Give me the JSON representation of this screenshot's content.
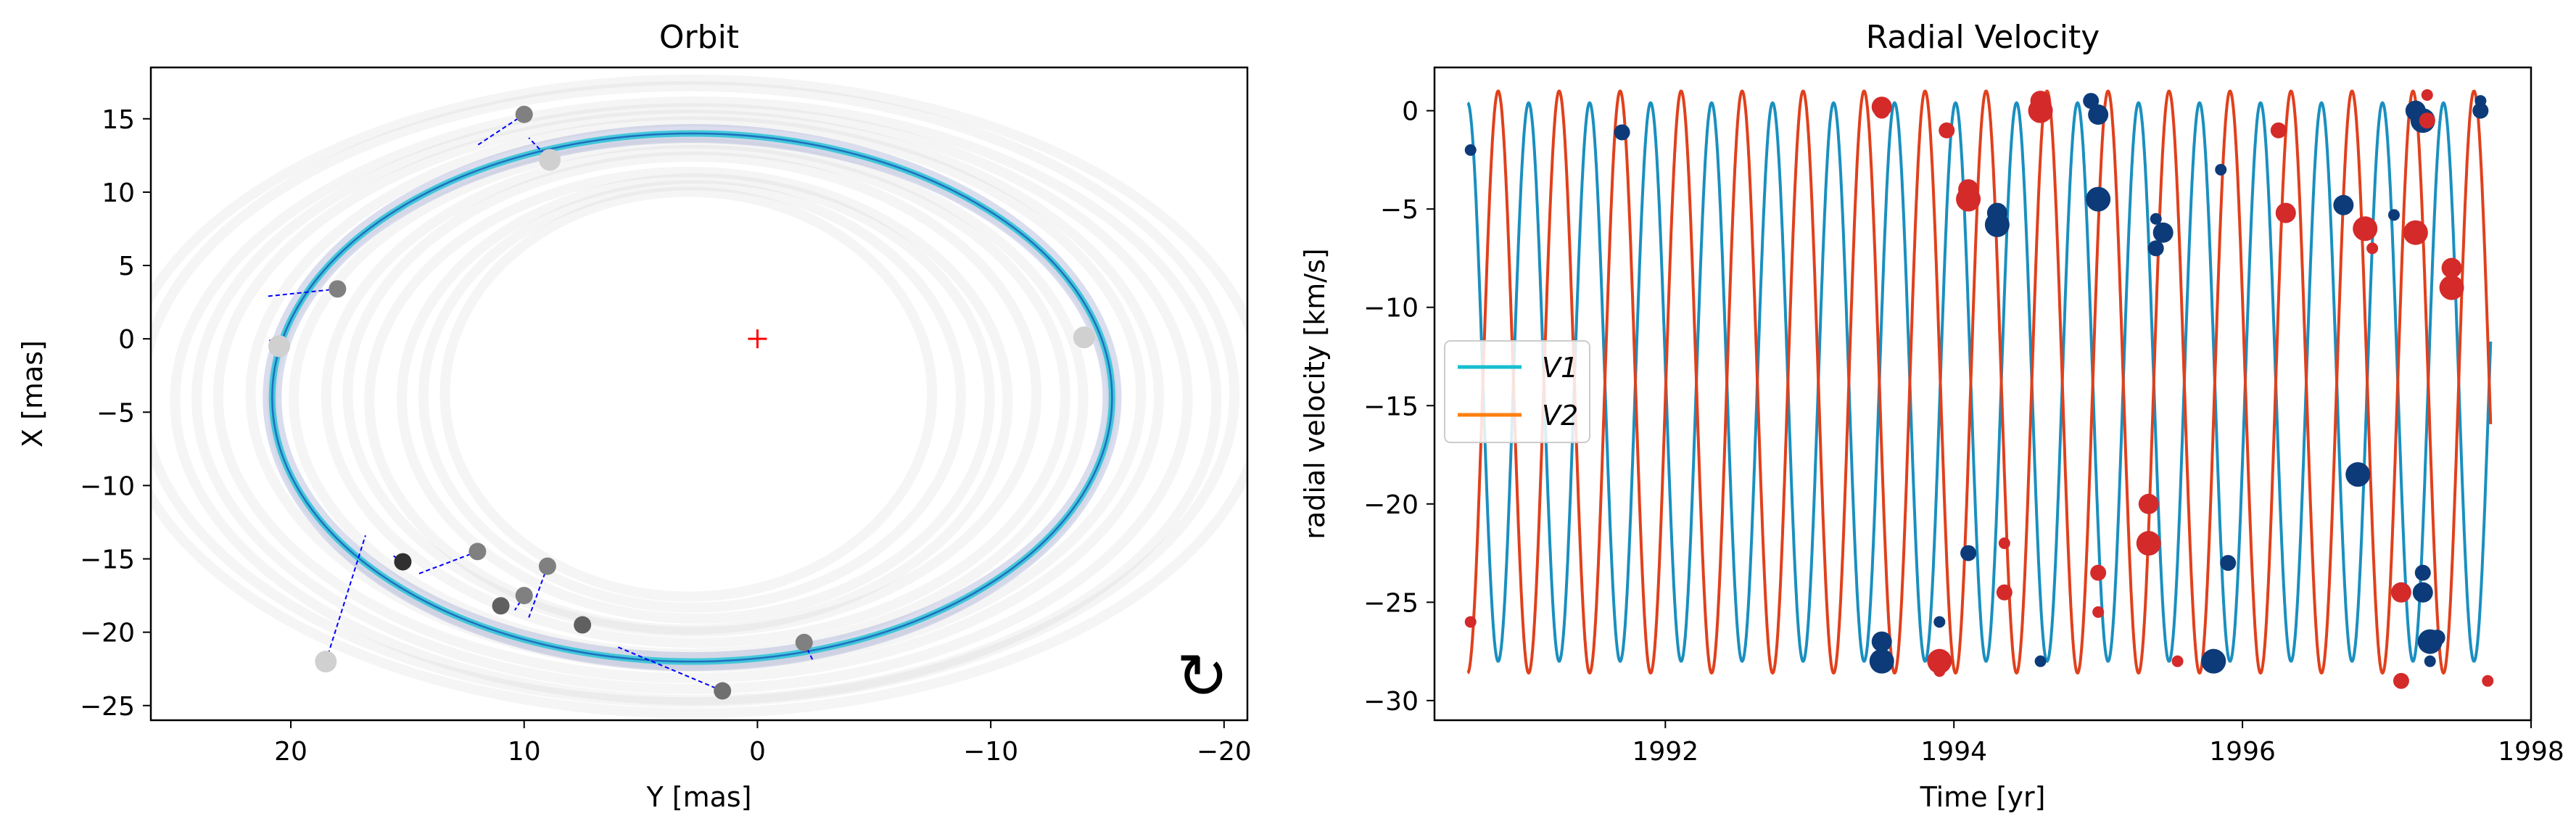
{
  "figure": {
    "panels": [
      {
        "title": "Orbit",
        "xlabel": "Y [mas]",
        "ylabel": "X [mas]",
        "rotation_symbol": "↻",
        "colors": {
          "orbit_band": "#29c4d6",
          "orbit_line": "#1f6fc0",
          "posterior_haze": "#c8c8c8",
          "origin_marker": "#ff0000",
          "residual_line": "#0000ff"
        }
      },
      {
        "title": "Radial Velocity",
        "xlabel": "Time [yr]",
        "ylabel": "radial velocity [km/s]",
        "legend": [
          "V1",
          "V2"
        ],
        "colors": {
          "v1_model": "#1a8fbf",
          "v2_model": "#e0401c",
          "v1_obs": "#0d3b7a",
          "v2_obs": "#d42a2a",
          "legend_v1": "#17becf",
          "legend_v2": "#ff7f0e"
        }
      }
    ]
  },
  "chart_data": [
    {
      "type": "scatter",
      "title": "Orbit",
      "xlabel": "Y [mas]",
      "ylabel": "X [mas]",
      "xlim": [
        26,
        -21
      ],
      "ylim": [
        -26,
        18.5
      ],
      "x_ticks": [
        20,
        10,
        0,
        -10,
        -20
      ],
      "x_tick_labels": [
        "20",
        "10",
        "0",
        "−10",
        "−20"
      ],
      "y_ticks": [
        15,
        10,
        5,
        0,
        -5,
        -10,
        -15,
        -20,
        -25
      ],
      "y_tick_labels": [
        "15",
        "10",
        "5",
        "0",
        "−5",
        "−10",
        "−15",
        "−20",
        "−25"
      ],
      "origin": {
        "x": 0,
        "y": 0,
        "marker": "+"
      },
      "orbit_ellipse": {
        "center": [
          2.8,
          -4.0
        ],
        "semi_axis_y": 18.0,
        "semi_axis_x": 18.0,
        "rotation_deg": 0
      },
      "observations": [
        {
          "x": 10.0,
          "y": 15.3,
          "model_x": 12.0,
          "model_y": 13.2,
          "shade": "#808080"
        },
        {
          "x": 8.9,
          "y": 12.2,
          "model_x": 9.8,
          "model_y": 13.7,
          "shade": "#d0d0d0"
        },
        {
          "x": 18.0,
          "y": 3.4,
          "model_x": 21.0,
          "model_y": 2.9,
          "shade": "#808080"
        },
        {
          "x": 20.5,
          "y": -0.5,
          "model_x": 21.0,
          "model_y": 0.0,
          "shade": "#d0d0d0"
        },
        {
          "x": -14.0,
          "y": 0.1,
          "model_x": -14.2,
          "model_y": 0.2,
          "shade": "#d0d0d0"
        },
        {
          "x": 12.0,
          "y": -14.5,
          "model_x": 14.5,
          "model_y": -16.0,
          "shade": "#808080"
        },
        {
          "x": 15.2,
          "y": -15.2,
          "model_x": 15.6,
          "model_y": -14.8,
          "shade": "#303030"
        },
        {
          "x": 10.0,
          "y": -17.5,
          "model_x": 10.4,
          "model_y": -18.5,
          "shade": "#808080"
        },
        {
          "x": 9.0,
          "y": -15.5,
          "model_x": 9.8,
          "model_y": -19.0,
          "shade": "#808080"
        },
        {
          "x": 11.0,
          "y": -18.2,
          "model_x": 11.2,
          "model_y": -18.0,
          "shade": "#606060"
        },
        {
          "x": 7.5,
          "y": -19.5,
          "model_x": 7.6,
          "model_y": -19.6,
          "shade": "#606060"
        },
        {
          "x": 1.5,
          "y": -24.0,
          "model_x": 6.0,
          "model_y": -21.0,
          "shade": "#707070"
        },
        {
          "x": -2.0,
          "y": -20.7,
          "model_x": -2.4,
          "model_y": -22.0,
          "shade": "#808080"
        },
        {
          "x": 18.5,
          "y": -22.0,
          "model_x": 16.8,
          "model_y": -13.4,
          "shade": "#d0d0d0"
        }
      ]
    },
    {
      "type": "line",
      "title": "Radial Velocity",
      "xlabel": "Time [yr]",
      "ylabel": "radial velocity [km/s]",
      "xlim": [
        1990.4,
        1998.0
      ],
      "ylim": [
        -31,
        2.2
      ],
      "x_ticks": [
        1992,
        1994,
        1996,
        1998
      ],
      "x_tick_labels": [
        "1992",
        "1994",
        "1996",
        "1998"
      ],
      "y_ticks": [
        0,
        -5,
        -10,
        -15,
        -20,
        -25,
        -30
      ],
      "y_tick_labels": [
        "0",
        "−5",
        "−10",
        "−15",
        "−20",
        "−25",
        "−30"
      ],
      "legend_position": "center-left",
      "model": {
        "t_start": 1990.63,
        "t_end": 1997.72,
        "period_yr": 0.4227,
        "gamma": -13.8,
        "K1": 14.2,
        "K2": 14.8,
        "t_peak_v1": 1990.63
      },
      "series": [
        {
          "name": "V1",
          "observations": [
            {
              "t": 1990.65,
              "v": -2.0
            },
            {
              "t": 1991.7,
              "v": -1.1
            },
            {
              "t": 1993.5,
              "v": -27.0
            },
            {
              "t": 1993.5,
              "v": -28.0
            },
            {
              "t": 1993.9,
              "v": -26.0
            },
            {
              "t": 1994.1,
              "v": -22.5
            },
            {
              "t": 1994.3,
              "v": -5.2
            },
            {
              "t": 1994.3,
              "v": -5.8
            },
            {
              "t": 1994.6,
              "v": -28.0
            },
            {
              "t": 1994.95,
              "v": 0.5
            },
            {
              "t": 1995.0,
              "v": -0.2
            },
            {
              "t": 1995.0,
              "v": -4.5
            },
            {
              "t": 1995.4,
              "v": -5.5
            },
            {
              "t": 1995.4,
              "v": -7.0
            },
            {
              "t": 1995.45,
              "v": -6.2
            },
            {
              "t": 1995.8,
              "v": -28.0
            },
            {
              "t": 1995.85,
              "v": -3.0
            },
            {
              "t": 1995.9,
              "v": -23.0
            },
            {
              "t": 1996.7,
              "v": -4.8
            },
            {
              "t": 1996.8,
              "v": -18.5
            },
            {
              "t": 1997.05,
              "v": -5.3
            },
            {
              "t": 1997.25,
              "v": -23.5
            },
            {
              "t": 1997.25,
              "v": -24.5
            },
            {
              "t": 1997.3,
              "v": -27.0
            },
            {
              "t": 1997.3,
              "v": -28.0
            },
            {
              "t": 1997.35,
              "v": -26.8
            },
            {
              "t": 1997.2,
              "v": 0.0
            },
            {
              "t": 1997.25,
              "v": -0.5
            },
            {
              "t": 1997.65,
              "v": 0.5
            },
            {
              "t": 1997.65,
              "v": 0.0
            }
          ]
        },
        {
          "name": "V2",
          "observations": [
            {
              "t": 1990.65,
              "v": -26.0
            },
            {
              "t": 1993.5,
              "v": 0.0
            },
            {
              "t": 1993.5,
              "v": 0.2
            },
            {
              "t": 1993.9,
              "v": -28.0
            },
            {
              "t": 1993.9,
              "v": -28.5
            },
            {
              "t": 1993.95,
              "v": -1.0
            },
            {
              "t": 1994.1,
              "v": -4.0
            },
            {
              "t": 1994.1,
              "v": -4.5
            },
            {
              "t": 1994.35,
              "v": -22.0
            },
            {
              "t": 1994.35,
              "v": -24.5
            },
            {
              "t": 1994.6,
              "v": 0.5
            },
            {
              "t": 1994.6,
              "v": 0.0
            },
            {
              "t": 1995.0,
              "v": -25.5
            },
            {
              "t": 1995.0,
              "v": -23.5
            },
            {
              "t": 1995.35,
              "v": -20.0
            },
            {
              "t": 1995.35,
              "v": -22.0
            },
            {
              "t": 1995.55,
              "v": -28.0
            },
            {
              "t": 1996.25,
              "v": -1.0
            },
            {
              "t": 1996.3,
              "v": -5.2
            },
            {
              "t": 1996.85,
              "v": -6.0
            },
            {
              "t": 1996.9,
              "v": -7.0
            },
            {
              "t": 1997.1,
              "v": -29.0
            },
            {
              "t": 1997.1,
              "v": -24.5
            },
            {
              "t": 1997.2,
              "v": -6.2
            },
            {
              "t": 1997.28,
              "v": 0.8
            },
            {
              "t": 1997.28,
              "v": -0.5
            },
            {
              "t": 1997.45,
              "v": -8.0
            },
            {
              "t": 1997.45,
              "v": -9.0
            },
            {
              "t": 1997.7,
              "v": -29.0
            }
          ]
        }
      ]
    }
  ]
}
